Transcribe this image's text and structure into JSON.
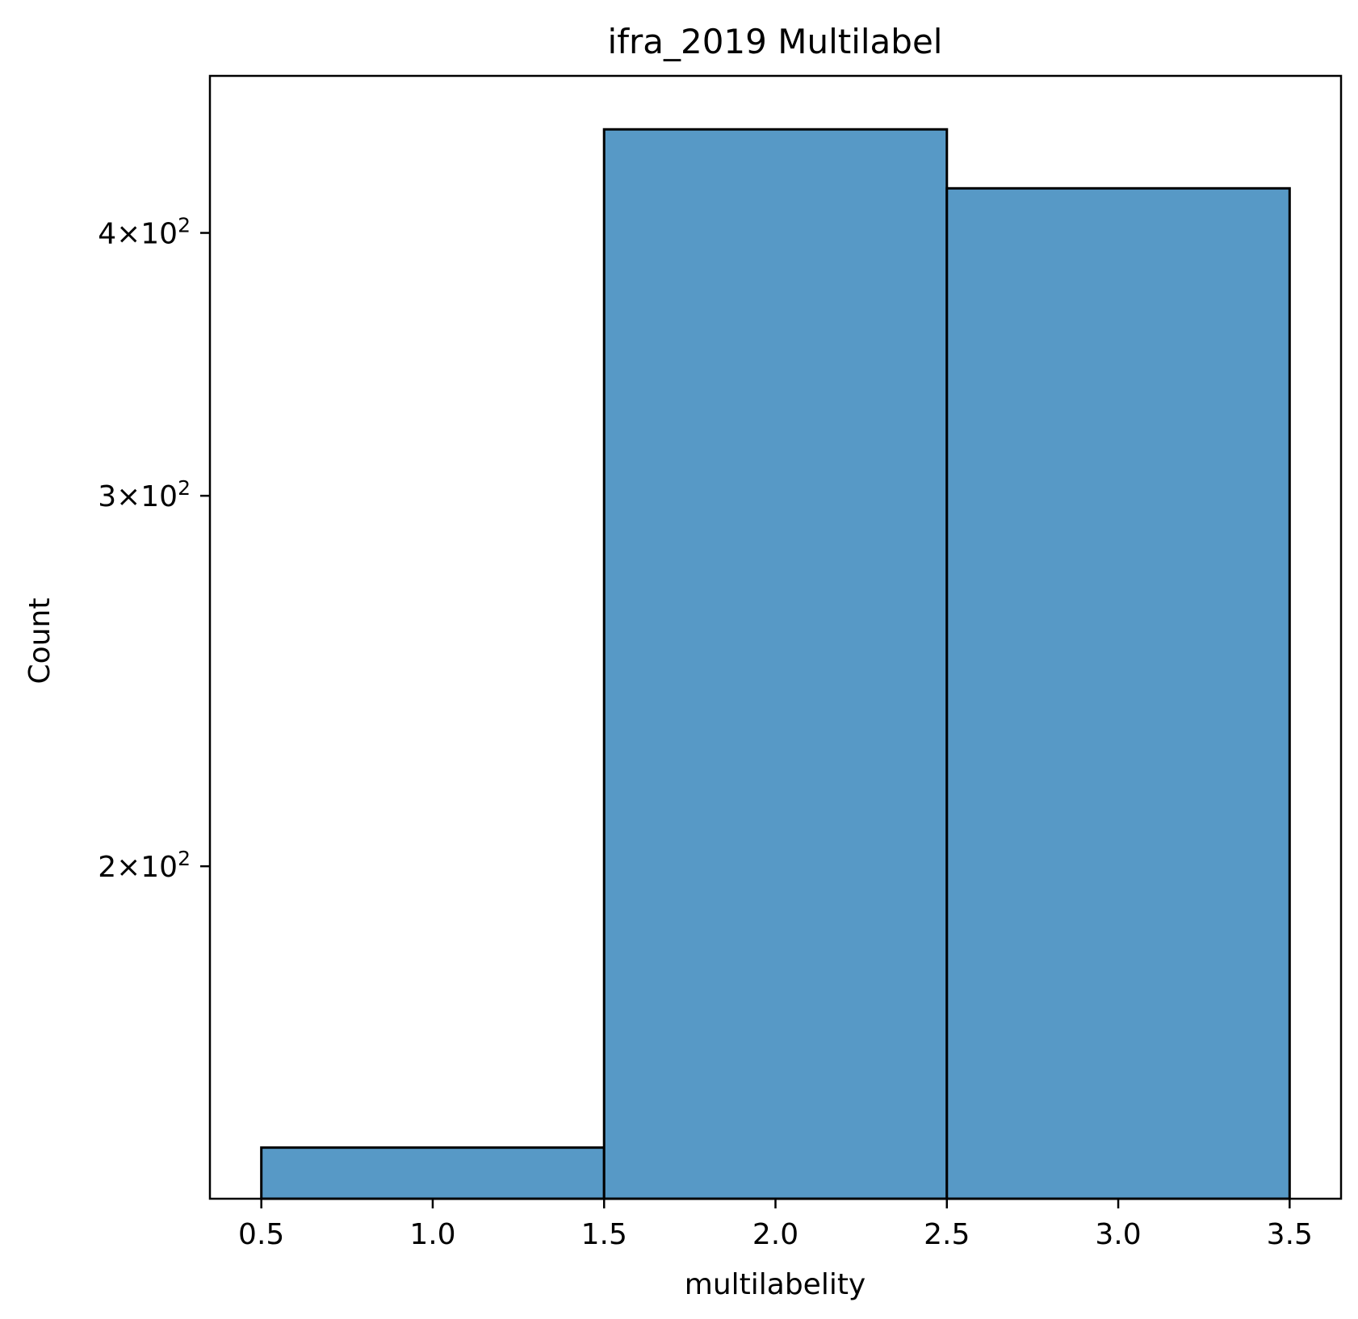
{
  "chart_data": {
    "type": "bar",
    "title": "ifra_2019 Multilabel",
    "xlabel": "multilabelity",
    "ylabel": "Count",
    "bins": [
      {
        "x0": 0.5,
        "x1": 1.5,
        "value": 147
      },
      {
        "x0": 1.5,
        "x1": 2.5,
        "value": 448
      },
      {
        "x0": 2.5,
        "x1": 3.5,
        "value": 420
      }
    ],
    "xlim": [
      0.35,
      3.65
    ],
    "ylim": [
      139,
      475
    ],
    "yscale": "log",
    "xticks": [
      {
        "value": 0.5,
        "label": "0.5"
      },
      {
        "value": 1.0,
        "label": "1.0"
      },
      {
        "value": 1.5,
        "label": "1.5"
      },
      {
        "value": 2.0,
        "label": "2.0"
      },
      {
        "value": 2.5,
        "label": "2.5"
      },
      {
        "value": 3.0,
        "label": "3.0"
      },
      {
        "value": 3.5,
        "label": "3.5"
      }
    ],
    "yticks": [
      {
        "value": 200,
        "mantissa": "2",
        "base": "10",
        "exponent": "2"
      },
      {
        "value": 300,
        "mantissa": "3",
        "base": "10",
        "exponent": "2"
      },
      {
        "value": 400,
        "mantissa": "4",
        "base": "10",
        "exponent": "2"
      }
    ],
    "grid": false,
    "bar_color": "#5799c6",
    "edge_color": "#000000"
  }
}
